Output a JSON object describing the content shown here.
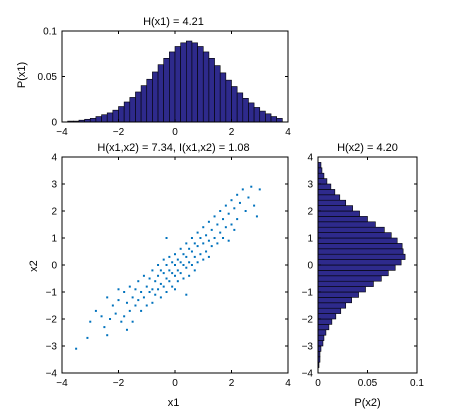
{
  "colors": {
    "hist_fill": "#2e2a8c",
    "hist_edge": "#000000",
    "scatter": "#0072bd",
    "axis": "#000000"
  },
  "chart_data": [
    {
      "id": "top",
      "type": "bar",
      "title": "H(x1) = 4.21",
      "xlabel": "",
      "ylabel": "P(x1)",
      "xlim": [
        -4,
        4
      ],
      "ylim": [
        0,
        0.1
      ],
      "xticks": [
        -4,
        -2,
        0,
        2,
        4
      ],
      "yticks": [
        0,
        0.05,
        0.1
      ],
      "xtick_labels": [
        "−4",
        "−2",
        "0",
        "2",
        "4"
      ],
      "ytick_labels": [
        "0",
        "0.05",
        "0.1"
      ],
      "bin_width": 0.2,
      "bin_edges_start": -3.8,
      "values": [
        0.001,
        0.001,
        0.002,
        0.003,
        0.004,
        0.006,
        0.008,
        0.01,
        0.013,
        0.017,
        0.022,
        0.027,
        0.033,
        0.04,
        0.047,
        0.055,
        0.063,
        0.07,
        0.077,
        0.083,
        0.087,
        0.089,
        0.087,
        0.083,
        0.077,
        0.07,
        0.062,
        0.054,
        0.046,
        0.039,
        0.032,
        0.026,
        0.021,
        0.016,
        0.012,
        0.009,
        0.006,
        0.004
      ]
    },
    {
      "id": "main",
      "type": "scatter",
      "title": "H(x1,x2) = 7.34, I(x1,x2) = 1.08",
      "xlabel": "x1",
      "ylabel": "x2",
      "xlim": [
        -4,
        4
      ],
      "ylim": [
        -4,
        4
      ],
      "xticks": [
        -4,
        -2,
        0,
        2,
        4
      ],
      "yticks": [
        -4,
        -3,
        -2,
        -1,
        0,
        1,
        2,
        3,
        4
      ],
      "xtick_labels": [
        "−4",
        "−2",
        "0",
        "2",
        "4"
      ],
      "ytick_labels": [
        "−4",
        "−3",
        "−2",
        "−1",
        "0",
        "1",
        "2",
        "3",
        "4"
      ],
      "points": [
        [
          -3.5,
          -3.1
        ],
        [
          -3.0,
          -2.1
        ],
        [
          -3.1,
          -2.7
        ],
        [
          -2.8,
          -1.7
        ],
        [
          -2.6,
          -1.9
        ],
        [
          -2.5,
          -2.3
        ],
        [
          -2.4,
          -1.2
        ],
        [
          -2.3,
          -2.0
        ],
        [
          -2.2,
          -1.5
        ],
        [
          -2.1,
          -1.8
        ],
        [
          -2.0,
          -1.3
        ],
        [
          -1.9,
          -2.1
        ],
        [
          -1.8,
          -1.0
        ],
        [
          -1.8,
          -1.9
        ],
        [
          -1.7,
          -1.4
        ],
        [
          -1.6,
          -0.8
        ],
        [
          -1.6,
          -1.7
        ],
        [
          -1.5,
          -1.2
        ],
        [
          -1.5,
          -2.1
        ],
        [
          -1.4,
          -0.9
        ],
        [
          -1.4,
          -1.5
        ],
        [
          -1.3,
          -0.6
        ],
        [
          -1.3,
          -1.3
        ],
        [
          -1.2,
          -1.0
        ],
        [
          -1.2,
          -1.7
        ],
        [
          -1.1,
          -0.4
        ],
        [
          -1.1,
          -1.2
        ],
        [
          -1.0,
          -0.8
        ],
        [
          -1.0,
          -1.5
        ],
        [
          -0.9,
          -0.5
        ],
        [
          -0.9,
          -1.0
        ],
        [
          -0.8,
          -0.2
        ],
        [
          -0.8,
          -0.9
        ],
        [
          -0.8,
          -1.4
        ],
        [
          -0.7,
          -0.6
        ],
        [
          -0.7,
          -1.1
        ],
        [
          -0.6,
          0.0
        ],
        [
          -0.6,
          -0.4
        ],
        [
          -0.6,
          -0.9
        ],
        [
          -0.5,
          -0.2
        ],
        [
          -0.5,
          -0.7
        ],
        [
          -0.5,
          -1.2
        ],
        [
          -0.4,
          0.2
        ],
        [
          -0.4,
          -0.3
        ],
        [
          -0.4,
          -0.8
        ],
        [
          -0.3,
          0.0
        ],
        [
          -0.3,
          -0.5
        ],
        [
          -0.3,
          -1.0
        ],
        [
          -0.2,
          0.3
        ],
        [
          -0.2,
          -0.2
        ],
        [
          -0.2,
          -0.6
        ],
        [
          -0.1,
          0.1
        ],
        [
          -0.1,
          -0.3
        ],
        [
          -0.1,
          -0.8
        ],
        [
          0.0,
          0.4
        ],
        [
          0.0,
          0.0
        ],
        [
          0.0,
          -0.4
        ],
        [
          0.0,
          -0.9
        ],
        [
          0.1,
          0.2
        ],
        [
          0.1,
          -0.2
        ],
        [
          0.1,
          -0.6
        ],
        [
          0.2,
          0.6
        ],
        [
          0.2,
          0.1
        ],
        [
          0.2,
          -0.3
        ],
        [
          0.3,
          0.4
        ],
        [
          0.3,
          0.0
        ],
        [
          0.3,
          -0.5
        ],
        [
          0.4,
          0.8
        ],
        [
          0.4,
          0.3
        ],
        [
          0.4,
          -0.1
        ],
        [
          0.5,
          0.6
        ],
        [
          0.5,
          0.1
        ],
        [
          0.5,
          -0.4
        ],
        [
          0.6,
          1.0
        ],
        [
          0.6,
          0.5
        ],
        [
          0.6,
          0.0
        ],
        [
          0.7,
          0.8
        ],
        [
          0.7,
          0.3
        ],
        [
          0.7,
          -0.2
        ],
        [
          0.8,
          1.2
        ],
        [
          0.8,
          0.7
        ],
        [
          0.8,
          0.1
        ],
        [
          0.9,
          1.0
        ],
        [
          0.9,
          0.4
        ],
        [
          1.0,
          1.4
        ],
        [
          1.0,
          0.8
        ],
        [
          1.0,
          0.2
        ],
        [
          1.1,
          1.1
        ],
        [
          1.1,
          0.5
        ],
        [
          1.2,
          1.6
        ],
        [
          1.2,
          0.9
        ],
        [
          1.2,
          0.3
        ],
        [
          1.3,
          1.3
        ],
        [
          1.3,
          0.7
        ],
        [
          1.4,
          1.8
        ],
        [
          1.4,
          1.0
        ],
        [
          1.5,
          1.5
        ],
        [
          1.5,
          0.8
        ],
        [
          1.6,
          2.0
        ],
        [
          1.6,
          1.2
        ],
        [
          1.7,
          1.7
        ],
        [
          1.7,
          1.0
        ],
        [
          1.8,
          2.2
        ],
        [
          1.8,
          1.4
        ],
        [
          1.9,
          1.9
        ],
        [
          2.0,
          2.4
        ],
        [
          2.0,
          1.5
        ],
        [
          2.1,
          2.1
        ],
        [
          2.2,
          2.6
        ],
        [
          2.2,
          1.7
        ],
        [
          2.3,
          2.3
        ],
        [
          2.4,
          2.8
        ],
        [
          2.5,
          2.0
        ],
        [
          2.6,
          2.5
        ],
        [
          2.7,
          2.9
        ],
        [
          2.8,
          2.2
        ],
        [
          3.0,
          2.8
        ],
        [
          2.1,
          1.3
        ],
        [
          1.9,
          0.9
        ],
        [
          -2.0,
          -0.9
        ],
        [
          -1.7,
          -2.4
        ],
        [
          -2.4,
          -2.6
        ],
        [
          2.9,
          1.8
        ],
        [
          -0.3,
          1.0
        ],
        [
          0.4,
          -1.1
        ]
      ]
    },
    {
      "id": "right",
      "type": "bar",
      "orientation": "horizontal",
      "title": "H(x2) = 4.20",
      "xlabel": "P(x2)",
      "ylabel": "",
      "xlim": [
        0,
        0.1
      ],
      "ylim": [
        -4,
        4
      ],
      "xticks": [
        0,
        0.05,
        0.1
      ],
      "yticks": [
        -4,
        -3,
        -2,
        -1,
        0,
        1,
        2,
        3,
        4
      ],
      "xtick_labels": [
        "0",
        "0.05",
        "0.1"
      ],
      "ytick_labels": [
        "−4",
        "−3",
        "−2",
        "−1",
        "0",
        "1",
        "2",
        "3",
        "4"
      ],
      "bin_width": 0.2,
      "bin_edges_start": -3.8,
      "values": [
        0.001,
        0.002,
        0.002,
        0.003,
        0.005,
        0.006,
        0.008,
        0.011,
        0.014,
        0.018,
        0.023,
        0.028,
        0.034,
        0.041,
        0.048,
        0.056,
        0.064,
        0.071,
        0.078,
        0.084,
        0.088,
        0.086,
        0.085,
        0.08,
        0.074,
        0.067,
        0.058,
        0.05,
        0.042,
        0.035,
        0.028,
        0.022,
        0.017,
        0.013,
        0.009,
        0.006,
        0.004,
        0.003
      ]
    }
  ]
}
